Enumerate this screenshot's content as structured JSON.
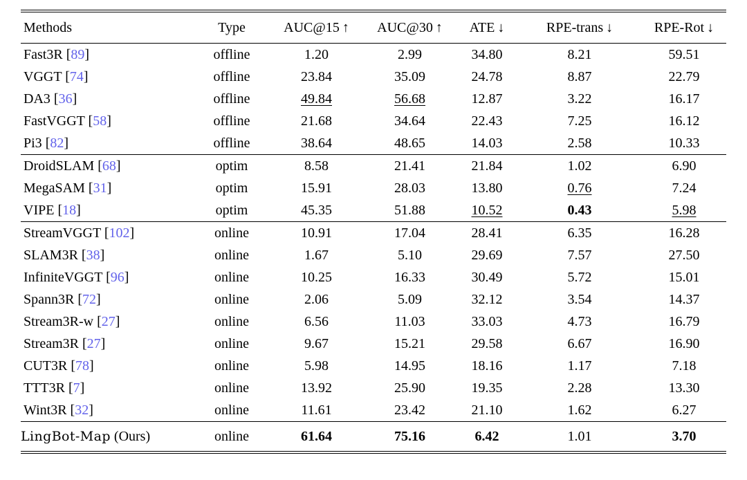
{
  "colors": {
    "citation_blue": "#6262ea",
    "text": "#000000",
    "rule": "#000000"
  },
  "table": {
    "columns": [
      {
        "key": "methods",
        "label": "Methods",
        "align": "left"
      },
      {
        "key": "type",
        "label": "Type"
      },
      {
        "key": "auc15",
        "label": "AUC@15",
        "arrow": "↑"
      },
      {
        "key": "auc30",
        "label": "AUC@30",
        "arrow": "↑"
      },
      {
        "key": "ate",
        "label": "ATE",
        "arrow": "↓"
      },
      {
        "key": "rpe-trans",
        "label": "RPE-trans",
        "arrow": "↓"
      },
      {
        "key": "rpe-rot",
        "label": "RPE-Rot",
        "arrow": "↓"
      }
    ],
    "groups": [
      {
        "name": "offline",
        "rows": [
          {
            "method": "Fast3R",
            "cite": "89",
            "type": "offline",
            "metrics": [
              {
                "v": "1.20"
              },
              {
                "v": "2.99"
              },
              {
                "v": "34.80"
              },
              {
                "v": "8.21"
              },
              {
                "v": "59.51"
              }
            ]
          },
          {
            "method": "VGGT",
            "cite": "74",
            "type": "offline",
            "metrics": [
              {
                "v": "23.84"
              },
              {
                "v": "35.09"
              },
              {
                "v": "24.78"
              },
              {
                "v": "8.87"
              },
              {
                "v": "22.79"
              }
            ]
          },
          {
            "method": "DA3",
            "cite": "36",
            "type": "offline",
            "metrics": [
              {
                "v": "49.84",
                "u": true
              },
              {
                "v": "56.68",
                "u": true
              },
              {
                "v": "12.87"
              },
              {
                "v": "3.22"
              },
              {
                "v": "16.17"
              }
            ]
          },
          {
            "method": "FastVGGT",
            "cite": "58",
            "type": "offline",
            "metrics": [
              {
                "v": "21.68"
              },
              {
                "v": "34.64"
              },
              {
                "v": "22.43"
              },
              {
                "v": "7.25"
              },
              {
                "v": "16.12"
              }
            ]
          },
          {
            "method": "Pi3",
            "cite": "82",
            "type": "offline",
            "metrics": [
              {
                "v": "38.64"
              },
              {
                "v": "48.65"
              },
              {
                "v": "14.03"
              },
              {
                "v": "2.58"
              },
              {
                "v": "10.33"
              }
            ]
          }
        ]
      },
      {
        "name": "optim",
        "rows": [
          {
            "method": "DroidSLAM",
            "cite": "68",
            "type": "optim",
            "metrics": [
              {
                "v": "8.58"
              },
              {
                "v": "21.41"
              },
              {
                "v": "21.84"
              },
              {
                "v": "1.02"
              },
              {
                "v": "6.90"
              }
            ]
          },
          {
            "method": "MegaSAM",
            "cite": "31",
            "type": "optim",
            "metrics": [
              {
                "v": "15.91"
              },
              {
                "v": "28.03"
              },
              {
                "v": "13.80"
              },
              {
                "v": "0.76",
                "u": true
              },
              {
                "v": "7.24"
              }
            ]
          },
          {
            "method": "VIPE",
            "cite": "18",
            "type": "optim",
            "metrics": [
              {
                "v": "45.35"
              },
              {
                "v": "51.88"
              },
              {
                "v": "10.52",
                "u": true
              },
              {
                "v": "0.43",
                "b": true
              },
              {
                "v": "5.98",
                "u": true
              }
            ]
          }
        ]
      },
      {
        "name": "online",
        "rows": [
          {
            "method": "StreamVGGT",
            "cite": "102",
            "type": "online",
            "metrics": [
              {
                "v": "10.91"
              },
              {
                "v": "17.04"
              },
              {
                "v": "28.41"
              },
              {
                "v": "6.35"
              },
              {
                "v": "16.28"
              }
            ]
          },
          {
            "method": "SLAM3R",
            "cite": "38",
            "type": "online",
            "metrics": [
              {
                "v": "1.67"
              },
              {
                "v": "5.10"
              },
              {
                "v": "29.69"
              },
              {
                "v": "7.57"
              },
              {
                "v": "27.50"
              }
            ]
          },
          {
            "method": "InfiniteVGGT",
            "cite": "96",
            "type": "online",
            "metrics": [
              {
                "v": "10.25"
              },
              {
                "v": "16.33"
              },
              {
                "v": "30.49"
              },
              {
                "v": "5.72"
              },
              {
                "v": "15.01"
              }
            ]
          },
          {
            "method": "Spann3R",
            "cite": "72",
            "type": "online",
            "metrics": [
              {
                "v": "2.06"
              },
              {
                "v": "5.09"
              },
              {
                "v": "32.12"
              },
              {
                "v": "3.54"
              },
              {
                "v": "14.37"
              }
            ]
          },
          {
            "method": "Stream3R-w",
            "cite": "27",
            "type": "online",
            "metrics": [
              {
                "v": "6.56"
              },
              {
                "v": "11.03"
              },
              {
                "v": "33.03"
              },
              {
                "v": "4.73"
              },
              {
                "v": "16.79"
              }
            ]
          },
          {
            "method": "Stream3R",
            "cite": "27",
            "type": "online",
            "metrics": [
              {
                "v": "9.67"
              },
              {
                "v": "15.21"
              },
              {
                "v": "29.58"
              },
              {
                "v": "6.67"
              },
              {
                "v": "16.90"
              }
            ]
          },
          {
            "method": "CUT3R",
            "cite": "78",
            "type": "online",
            "metrics": [
              {
                "v": "5.98"
              },
              {
                "v": "14.95"
              },
              {
                "v": "18.16"
              },
              {
                "v": "1.17"
              },
              {
                "v": "7.18"
              }
            ]
          },
          {
            "method": "TTT3R",
            "cite": "7",
            "type": "online",
            "metrics": [
              {
                "v": "13.92"
              },
              {
                "v": "25.90"
              },
              {
                "v": "19.35"
              },
              {
                "v": "2.28"
              },
              {
                "v": "13.30"
              }
            ]
          },
          {
            "method": "Wint3R",
            "cite": "32",
            "type": "online",
            "metrics": [
              {
                "v": "11.61"
              },
              {
                "v": "23.42"
              },
              {
                "v": "21.10"
              },
              {
                "v": "1.62"
              },
              {
                "v": "6.27"
              }
            ]
          }
        ]
      },
      {
        "name": "ours",
        "rows": [
          {
            "method": "LingBot-Map",
            "suffix": "(Ours)",
            "brand": true,
            "type": "online",
            "metrics": [
              {
                "v": "61.64",
                "b": true
              },
              {
                "v": "75.16",
                "b": true
              },
              {
                "v": "6.42",
                "b": true
              },
              {
                "v": "1.01"
              },
              {
                "v": "3.70",
                "b": true
              }
            ]
          }
        ]
      }
    ]
  }
}
